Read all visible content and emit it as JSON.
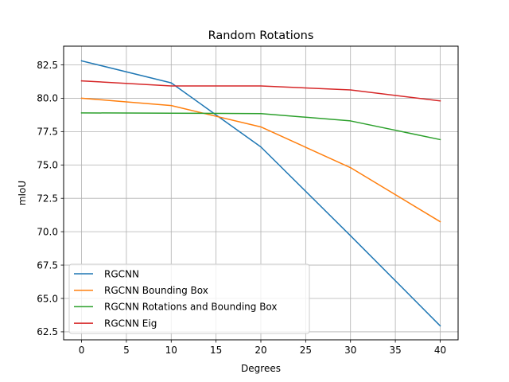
{
  "chart_data": {
    "type": "line",
    "title": "Random Rotations",
    "xlabel": "Degrees",
    "ylabel": "mIoU",
    "x": [
      0,
      10,
      20,
      30,
      40
    ],
    "xlim": [
      -2,
      42
    ],
    "ylim": [
      61.9,
      83.9
    ],
    "xticks": [
      0,
      5,
      10,
      15,
      20,
      25,
      30,
      35,
      40
    ],
    "yticks": [
      62.5,
      65.0,
      67.5,
      70.0,
      72.5,
      75.0,
      77.5,
      80.0,
      82.5
    ],
    "grid": true,
    "legend_position": "lower-left",
    "series": [
      {
        "name": "RGCNN",
        "color": "#1f77b4",
        "values": [
          82.8,
          81.15,
          76.35,
          69.7,
          62.95
        ]
      },
      {
        "name": "RGCNN Bounding Box",
        "color": "#ff7f0e",
        "values": [
          80.0,
          79.45,
          77.85,
          74.8,
          70.75
        ]
      },
      {
        "name": "RGCNN Rotations and Bounding Box",
        "color": "#2ca02c",
        "values": [
          78.9,
          78.88,
          78.85,
          78.3,
          76.9
        ]
      },
      {
        "name": "RGCNN Eig",
        "color": "#d62728",
        "values": [
          81.3,
          80.92,
          80.92,
          80.62,
          79.8
        ]
      }
    ]
  }
}
